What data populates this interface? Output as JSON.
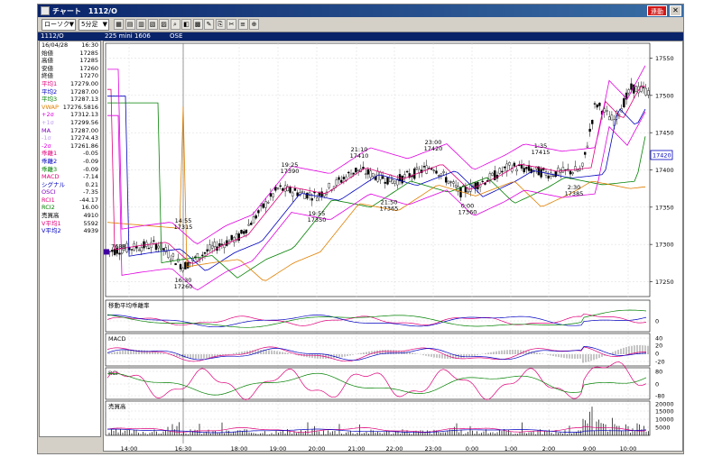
{
  "window": {
    "title": "チャート　1112/O",
    "link_button": "連動"
  },
  "toolbar": {
    "chart_type": "ローソク",
    "interval": "5分足"
  },
  "infobar": {
    "code": "1112/O",
    "contract": "225 mini 1606",
    "exchange": "OSE"
  },
  "panel": {
    "date": "16/04/28",
    "time": "16:30",
    "rows": [
      {
        "label": "始値",
        "value": "17285",
        "color": "#000000"
      },
      {
        "label": "高値",
        "value": "17285",
        "color": "#000000"
      },
      {
        "label": "安値",
        "value": "17260",
        "color": "#000000"
      },
      {
        "label": "終値",
        "value": "17270",
        "color": "#000000"
      },
      {
        "label": "平均1",
        "value": "17279.00",
        "color": "#e0007a"
      },
      {
        "label": "平均2",
        "value": "17287.00",
        "color": "#0000c0"
      },
      {
        "label": "平均3",
        "value": "17287.13",
        "color": "#008000"
      },
      {
        "label": "VWAP",
        "value": "17276.5816",
        "color": "#e08000"
      },
      {
        "label": "+2σ",
        "value": "17312.13",
        "color": "#e000e0"
      },
      {
        "label": "+1σ",
        "value": "17299.56",
        "color": "#c0a0f0"
      },
      {
        "label": "MA",
        "value": "17287.00",
        "color": "#8000c0"
      },
      {
        "label": "-1σ",
        "value": "17274.43",
        "color": "#c0a0f0"
      },
      {
        "label": "-2σ",
        "value": "17261.86",
        "color": "#e000e0"
      },
      {
        "label": "乖離1",
        "value": "-0.05",
        "color": "#e0007a"
      },
      {
        "label": "乖離2",
        "value": "-0.09",
        "color": "#0000c0"
      },
      {
        "label": "乖離3",
        "value": "-0.09",
        "color": "#008000"
      },
      {
        "label": "MACD",
        "value": "-7.14",
        "color": "#e0007a"
      },
      {
        "label": "シグナル",
        "value": "0.21",
        "color": "#0000c0"
      },
      {
        "label": "OSCI",
        "value": "-7.35",
        "color": "#8000c0"
      },
      {
        "label": "RCI1",
        "value": "-44.17",
        "color": "#e0007a"
      },
      {
        "label": "RCI2",
        "value": "16.00",
        "color": "#008000"
      },
      {
        "label": "売買高",
        "value": "4910",
        "color": "#000000"
      },
      {
        "label": "V平均1",
        "value": "5592",
        "color": "#e0007a"
      },
      {
        "label": "V平均2",
        "value": "4939",
        "color": "#0000c0"
      }
    ]
  },
  "chart": {
    "price_axis": [
      "17550",
      "17500",
      "17450",
      "17400",
      "17350",
      "17300",
      "17250"
    ],
    "last_price_label": "17420",
    "time_axis": [
      "14:00",
      "16:30",
      "18:00",
      "19:00",
      "20:00",
      "21:00",
      "22:00",
      "23:00",
      "0:00",
      "1:00",
      "2:00",
      "9:00",
      "10:00"
    ],
    "annotations": [
      {
        "time": "14:55",
        "price": "17315"
      },
      {
        "time": "16:30",
        "price": "17260"
      },
      {
        "time": "19:25",
        "price": "17390"
      },
      {
        "time": "19:55",
        "price": "17350"
      },
      {
        "time": "21:10",
        "price": "17410"
      },
      {
        "time": "21:50",
        "price": "17365"
      },
      {
        "time": "23:00",
        "price": "17420"
      },
      {
        "time": "0:00",
        "price": "17360"
      },
      {
        "time": "1:35",
        "price": "17415"
      },
      {
        "time": "2:30",
        "price": "17385"
      }
    ],
    "left_price_tag": "7688",
    "panels": {
      "deviation": {
        "title": "移動平均乖離率",
        "axis": [
          "0"
        ]
      },
      "macd": {
        "title": "MACD",
        "axis": [
          "40",
          "20",
          "0",
          "-20"
        ]
      },
      "rci": {
        "title": "RCI",
        "axis": [
          "80",
          "0",
          "-80"
        ]
      },
      "volume": {
        "title": "売買高",
        "axis": [
          "20000",
          "15000",
          "10000",
          "5000"
        ]
      }
    }
  },
  "chart_data": {
    "type": "candlestick",
    "interval": "5分足",
    "y_range": [
      17230,
      17570
    ],
    "x": [
      "14:00",
      "16:30",
      "18:00",
      "19:00",
      "20:00",
      "21:00",
      "22:00",
      "23:00",
      "0:00",
      "1:00",
      "2:00",
      "9:00",
      "10:00"
    ],
    "close_approx": [
      17290,
      17270,
      17300,
      17380,
      17365,
      17400,
      17390,
      17405,
      17375,
      17405,
      17395,
      17480,
      17510
    ],
    "high_low_marks": [
      {
        "label": "14:55",
        "value": 17315
      },
      {
        "label": "16:30",
        "value": 17260
      },
      {
        "label": "19:25",
        "value": 17390
      },
      {
        "label": "19:55",
        "value": 17350
      },
      {
        "label": "21:10",
        "value": 17410
      },
      {
        "label": "21:50",
        "value": 17365
      },
      {
        "label": "23:00",
        "value": 17420
      },
      {
        "label": "0:00",
        "value": 17360
      },
      {
        "label": "1:35",
        "value": 17415
      },
      {
        "label": "2:30",
        "value": 17385
      }
    ],
    "last_price": 17420
  }
}
